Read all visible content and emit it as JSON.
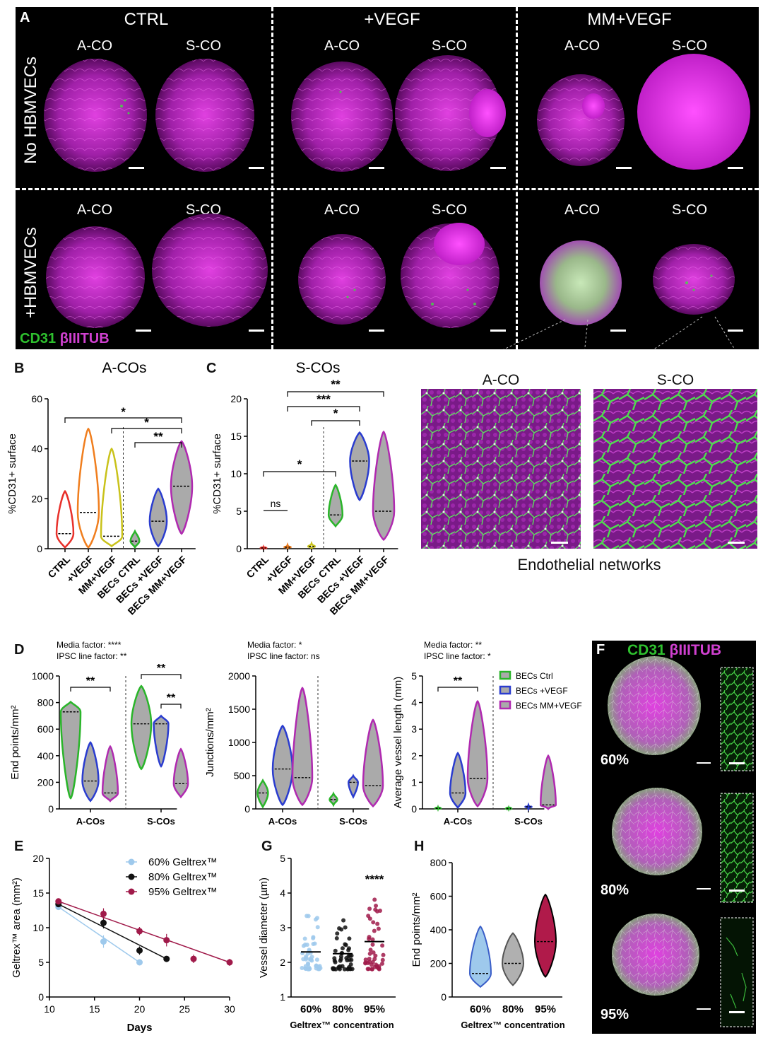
{
  "panel_labels": {
    "A": "A",
    "B": "B",
    "C": "C",
    "D": "D",
    "E": "E",
    "F": "F",
    "G": "G",
    "H": "H"
  },
  "panelA": {
    "conditions": [
      "CTRL",
      "+VEGF",
      "MM+VEGF"
    ],
    "sub": [
      "A-CO",
      "S-CO"
    ],
    "rows": [
      "No HBMVECs",
      "+HBMVECs"
    ],
    "stain_green": "CD31",
    "stain_magenta": "βIIITUB"
  },
  "zoom": {
    "left_label": "A-CO",
    "right_label": "S-CO",
    "caption": "Endothelial networks"
  },
  "chart_data": [
    {
      "id": "B",
      "type": "violin",
      "title": "A-COs",
      "ylabel": "%CD31+ surface",
      "ylim": [
        0,
        60
      ],
      "yticks": [
        0,
        20,
        40,
        60
      ],
      "categories": [
        "CTRL",
        "+VEGF",
        "MM+VEGF",
        "BECs CTRL",
        "BECs +VEGF",
        "BECs MM+VEGF"
      ],
      "colors": [
        "#e8302a",
        "#f07e1e",
        "#c9c21a",
        "#2ab52a",
        "#2a3ccf",
        "#b02ab0"
      ],
      "ranges": [
        [
          0.5,
          23
        ],
        [
          0.5,
          48
        ],
        [
          1,
          40
        ],
        [
          0.5,
          7
        ],
        [
          1,
          24
        ],
        [
          6,
          43
        ]
      ],
      "medians": [
        6,
        14.5,
        5,
        3,
        11,
        25
      ],
      "sig": [
        {
          "from": 0,
          "to": 5,
          "label": "*"
        },
        {
          "from": 2,
          "to": 5,
          "label": "*"
        },
        {
          "from": 3,
          "to": 5,
          "label": "**"
        }
      ]
    },
    {
      "id": "C",
      "type": "violin",
      "title": "S-COs",
      "ylabel": "%CD31+ surface",
      "ylim": [
        0,
        20
      ],
      "yticks": [
        0,
        5,
        10,
        15,
        20
      ],
      "categories": [
        "CTRL",
        "+VEGF",
        "MM+VEGF",
        "BECs CTRL",
        "BECs +VEGF",
        "BECs MM+VEGF"
      ],
      "colors": [
        "#e8302a",
        "#f07e1e",
        "#c9c21a",
        "#2ab52a",
        "#2a3ccf",
        "#b02ab0"
      ],
      "ranges": [
        [
          0,
          0.2
        ],
        [
          0,
          0.5
        ],
        [
          0,
          0.7
        ],
        [
          3,
          8.5
        ],
        [
          6.5,
          15.5
        ],
        [
          1.2,
          15.6
        ]
      ],
      "medians": [
        0.1,
        0.2,
        0.3,
        4.5,
        11.7,
        5
      ],
      "sig": [
        {
          "from": 0,
          "to": 1,
          "label": "ns"
        },
        {
          "from": 0,
          "to": 3,
          "label": "*"
        },
        {
          "from": 2,
          "to": 4,
          "label": "*"
        },
        {
          "from": 1,
          "to": 4,
          "label": "***"
        },
        {
          "from": 1,
          "to": 5,
          "label": "**"
        }
      ]
    },
    {
      "id": "D1",
      "type": "violin",
      "ylabel": "End points/mm²",
      "ylim": [
        0,
        1000
      ],
      "yticks": [
        0,
        200,
        400,
        600,
        800,
        1000
      ],
      "groups": [
        "A-COs",
        "S-COs"
      ],
      "annotation": [
        "Media factor: ****",
        "IPSC line factor: **"
      ],
      "series": [
        {
          "name": "BECs Ctrl",
          "color": "#2ab52a",
          "ranges": [
            [
              80,
              805
            ],
            [
              300,
              925
            ]
          ],
          "medians": [
            730,
            640
          ]
        },
        {
          "name": "BECs +VEGF",
          "color": "#2a3ccf",
          "ranges": [
            [
              60,
              500
            ],
            [
              320,
              700
            ]
          ],
          "medians": [
            210,
            640
          ]
        },
        {
          "name": "BECs MM+VEGF",
          "color": "#b02ab0",
          "ranges": [
            [
              60,
              470
            ],
            [
              90,
              450
            ]
          ],
          "medians": [
            120,
            190
          ]
        }
      ],
      "sig": [
        {
          "group": 0,
          "from": 0,
          "to": 2,
          "label": "**"
        },
        {
          "group": 1,
          "from": 0,
          "to": 2,
          "label": "**"
        },
        {
          "group": 1,
          "from": 1,
          "to": 2,
          "label": "**"
        }
      ]
    },
    {
      "id": "D2",
      "type": "violin",
      "ylabel": "Junctions/mm²",
      "ylim": [
        0,
        2000
      ],
      "yticks": [
        0,
        500,
        1000,
        1500,
        2000
      ],
      "groups": [
        "A-COs",
        "S-COs"
      ],
      "annotation": [
        "Media factor: *",
        "IPSC line factor: ns"
      ],
      "series": [
        {
          "name": "BECs Ctrl",
          "color": "#2ab52a",
          "ranges": [
            [
              30,
              430
            ],
            [
              60,
              230
            ]
          ],
          "medians": [
            240,
            140
          ]
        },
        {
          "name": "BECs +VEGF",
          "color": "#2a3ccf",
          "ranges": [
            [
              60,
              1250
            ],
            [
              180,
              500
            ]
          ],
          "medians": [
            600,
            400
          ]
        },
        {
          "name": "BECs MM+VEGF",
          "color": "#b02ab0",
          "ranges": [
            [
              60,
              1820
            ],
            [
              40,
              1340
            ]
          ],
          "medians": [
            470,
            350
          ]
        }
      ],
      "sig": []
    },
    {
      "id": "D3",
      "type": "violin",
      "ylabel": "Average vessel length (mm)",
      "ylim": [
        0,
        5
      ],
      "yticks": [
        0,
        1,
        2,
        3,
        4,
        5
      ],
      "groups": [
        "A-COs",
        "S-COs"
      ],
      "annotation": [
        "Media factor: **",
        "IPSC line factor: *"
      ],
      "series": [
        {
          "name": "BECs Ctrl",
          "color": "#2ab52a",
          "ranges": [
            [
              0,
              0.06
            ],
            [
              0,
              0.04
            ]
          ],
          "medians": [
            0.02,
            0.01
          ]
        },
        {
          "name": "BECs +VEGF",
          "color": "#2a3ccf",
          "ranges": [
            [
              0.05,
              2.1
            ],
            [
              0,
              0.15
            ]
          ],
          "medians": [
            0.6,
            0.08
          ]
        },
        {
          "name": "BECs MM+VEGF",
          "color": "#b02ab0",
          "ranges": [
            [
              0.1,
              4.05
            ],
            [
              0,
              2.0
            ]
          ],
          "medians": [
            1.15,
            0.15
          ]
        }
      ],
      "legend": [
        "BECs Ctrl",
        "BECs +VEGF",
        "BECs MM+VEGF"
      ],
      "sig": [
        {
          "group": 0,
          "from": 0,
          "to": 2,
          "label": "**"
        }
      ]
    },
    {
      "id": "E",
      "type": "line",
      "xlabel": "Days",
      "ylabel": "Geltrex™ area (mm²)",
      "xlim": [
        10,
        30
      ],
      "ylim": [
        0,
        20
      ],
      "xticks": [
        10,
        15,
        20,
        25,
        30
      ],
      "yticks": [
        0,
        5,
        10,
        15,
        20
      ],
      "series": [
        {
          "name": "60% Geltrex™",
          "color": "#9ec9ec",
          "x": [
            11,
            16,
            20
          ],
          "y": [
            13.0,
            8.0,
            5.0
          ],
          "err": [
            0.4,
            0.9,
            0.3
          ]
        },
        {
          "name": "80% Geltrex™",
          "color": "#111111",
          "x": [
            11,
            16,
            20,
            23
          ],
          "y": [
            13.4,
            10.7,
            6.7,
            5.5
          ],
          "err": [
            0.4,
            0.8,
            0.6,
            0.3
          ]
        },
        {
          "name": "95% Geltrex™",
          "color": "#a01a4a",
          "x": [
            11,
            16,
            20,
            23,
            26,
            30
          ],
          "y": [
            13.8,
            12.0,
            9.5,
            8.2,
            5.5,
            5.0
          ],
          "err": [
            0.3,
            0.8,
            0.6,
            0.9,
            0.6,
            0.5
          ]
        }
      ]
    },
    {
      "id": "G",
      "type": "scatter",
      "xlabel": "Geltrex™ concentration",
      "ylabel": "Vessel diameter (µm)",
      "ylim": [
        1,
        5
      ],
      "yticks": [
        1,
        2,
        3,
        4,
        5
      ],
      "categories": [
        "60%",
        "80%",
        "95%"
      ],
      "colors": [
        "#9ec9ec",
        "#111111",
        "#a01a4a"
      ],
      "ranges": [
        [
          1.8,
          3.5
        ],
        [
          1.8,
          3.3
        ],
        [
          1.8,
          4.0
        ]
      ],
      "means": [
        2.3,
        2.25,
        2.6
      ],
      "sig": [
        {
          "index": 2,
          "label": "****"
        }
      ]
    },
    {
      "id": "H",
      "type": "violin",
      "xlabel": "Geltrex™ concentration",
      "ylabel": "End points/mm²",
      "ylim": [
        0,
        800
      ],
      "yticks": [
        0,
        200,
        400,
        600,
        800
      ],
      "categories": [
        "60%",
        "80%",
        "95%"
      ],
      "colors": [
        "#3a5ec8",
        "#555555",
        "#a01a4a"
      ],
      "fills": [
        "#9ec9ec",
        "#b0b0b0",
        "#b01a4a"
      ],
      "ranges": [
        [
          60,
          420
        ],
        [
          70,
          380
        ],
        [
          120,
          610
        ]
      ],
      "medians": [
        140,
        200,
        330
      ]
    }
  ],
  "panelF": {
    "stain_green": "CD31",
    "stain_magenta": "βIIITUB",
    "labels": [
      "60%",
      "80%",
      "95%"
    ]
  }
}
